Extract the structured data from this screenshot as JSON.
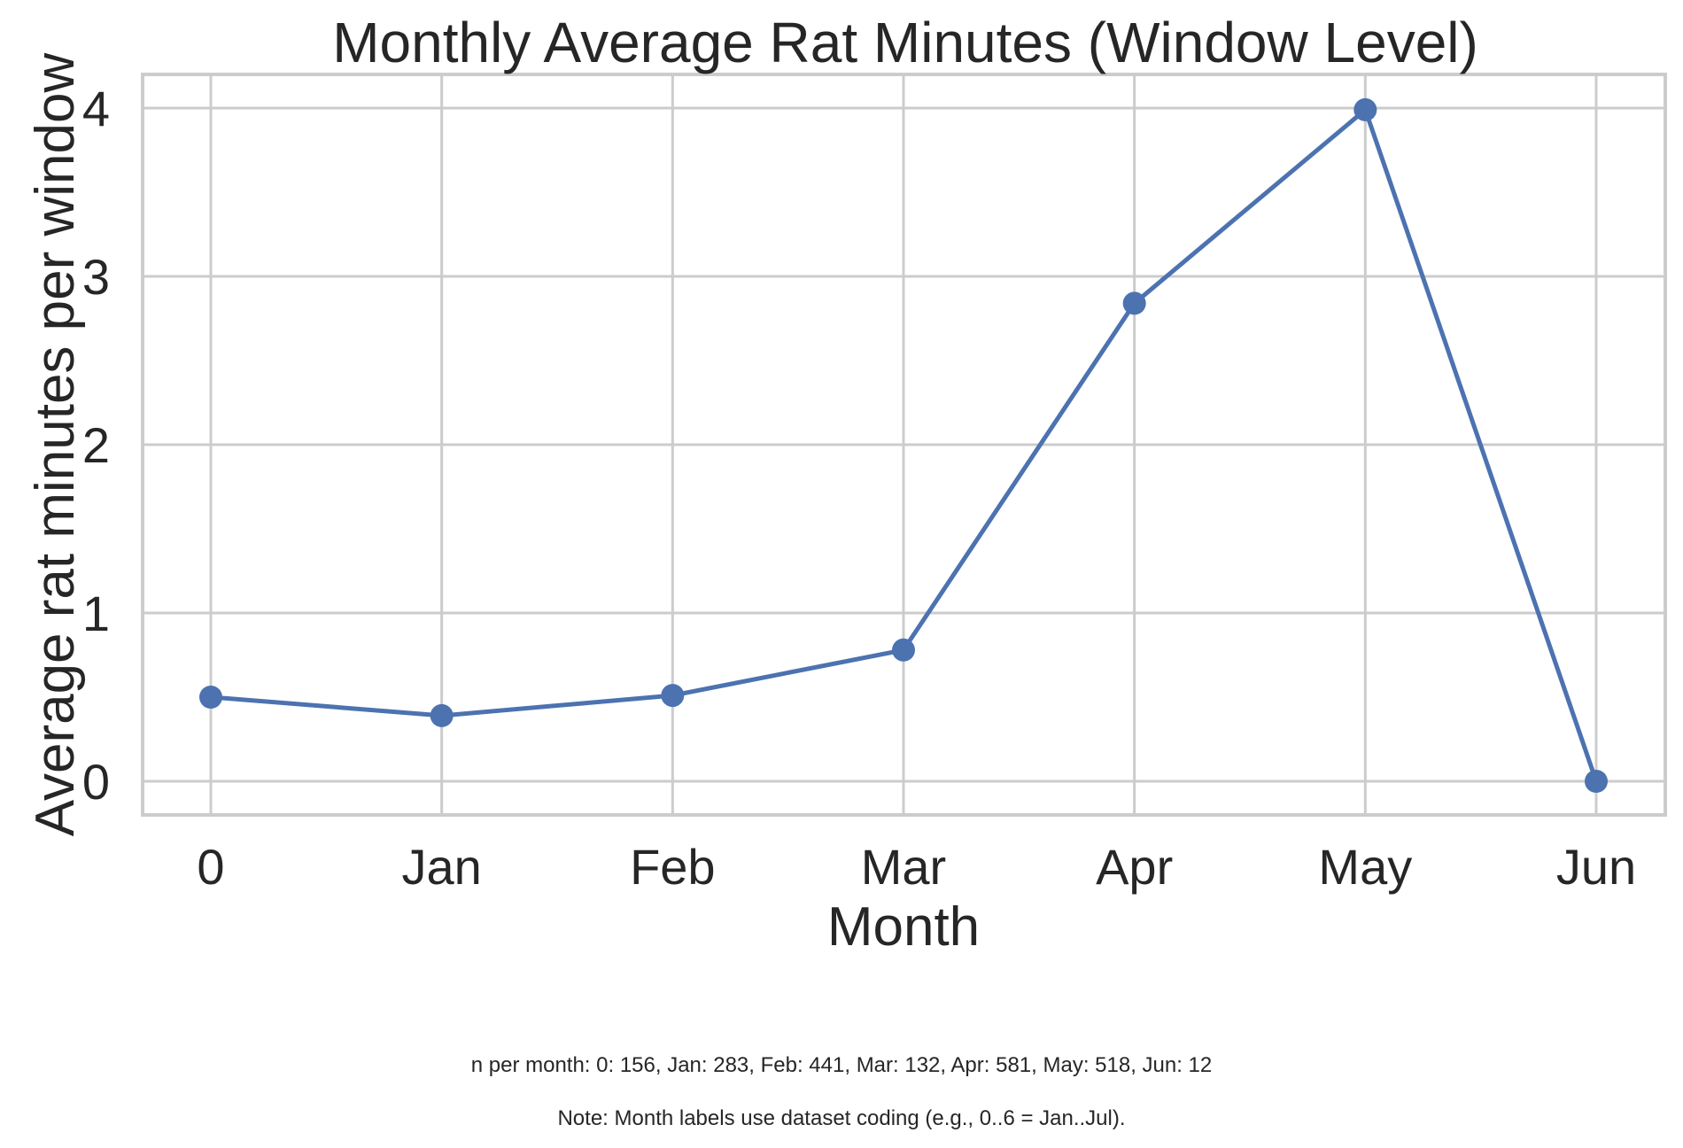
{
  "chart_data": {
    "type": "line",
    "title": "Monthly Average Rat Minutes (Window Level)",
    "xlabel": "Month",
    "ylabel": "Average rat minutes per window",
    "categories": [
      "0",
      "Jan",
      "Feb",
      "Mar",
      "Apr",
      "May",
      "Jun"
    ],
    "series": [
      {
        "values": [
          0.5,
          0.39,
          0.51,
          0.78,
          2.84,
          3.99,
          0.0
        ],
        "color": "#4c72b0",
        "marker": "circle"
      }
    ],
    "ylim": [
      -0.2,
      4.2
    ],
    "yticks": [
      0,
      1,
      2,
      3,
      4
    ],
    "grid": true,
    "legend": "none"
  },
  "footnotes": {
    "counts": "n per month: 0: 156, Jan: 283, Feb: 441, Mar: 132, Apr: 581, May: 518, Jun: 12",
    "note": "Note: Month labels use dataset coding (e.g., 0..6 = Jan..Jul)."
  }
}
